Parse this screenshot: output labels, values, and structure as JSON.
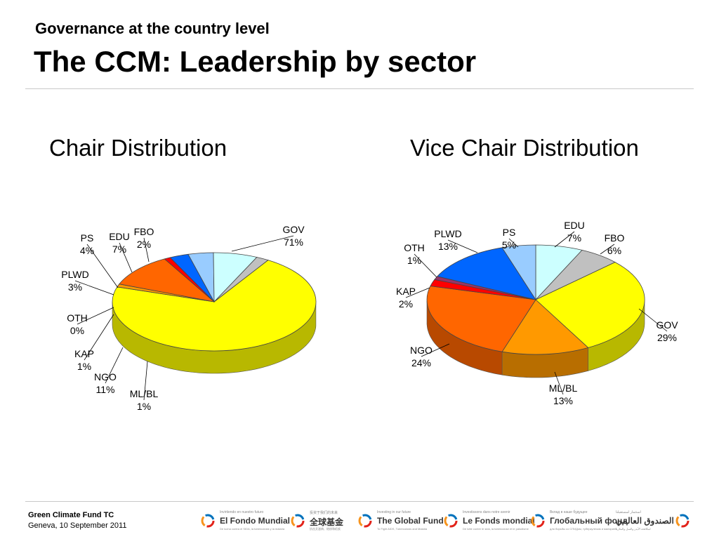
{
  "header": {
    "subtitle": "Governance at the country level",
    "title": "The CCM: Leadership by sector"
  },
  "chart_data": [
    {
      "type": "pie",
      "title": "Chair Distribution",
      "slices": [
        {
          "label": "GOV",
          "value": 71,
          "pct": "71%",
          "color": "#ffff00"
        },
        {
          "label": "ML/BL",
          "value": 1,
          "pct": "1%",
          "color": "#ff9900"
        },
        {
          "label": "NGO",
          "value": 11,
          "pct": "11%",
          "color": "#ff6600"
        },
        {
          "label": "KAP",
          "value": 1,
          "pct": "1%",
          "color": "#ff0000"
        },
        {
          "label": "OTH",
          "value": 0,
          "pct": "0%",
          "color": "#993366"
        },
        {
          "label": "PLWD",
          "value": 3,
          "pct": "3%",
          "color": "#0066ff"
        },
        {
          "label": "PS",
          "value": 4,
          "pct": "4%",
          "color": "#99ccff"
        },
        {
          "label": "EDU",
          "value": 7,
          "pct": "7%",
          "color": "#ccffff"
        },
        {
          "label": "FBO",
          "value": 2,
          "pct": "2%",
          "color": "#c0c0c0"
        }
      ]
    },
    {
      "type": "pie",
      "title": "Vice Chair Distribution",
      "slices": [
        {
          "label": "EDU",
          "value": 7,
          "pct": "7%",
          "color": "#ccffff"
        },
        {
          "label": "FBO",
          "value": 6,
          "pct": "6%",
          "color": "#c0c0c0"
        },
        {
          "label": "GOV",
          "value": 29,
          "pct": "29%",
          "color": "#ffff00"
        },
        {
          "label": "ML/BL",
          "value": 13,
          "pct": "13%",
          "color": "#ff9900"
        },
        {
          "label": "NGO",
          "value": 24,
          "pct": "24%",
          "color": "#ff6600"
        },
        {
          "label": "KAP",
          "value": 2,
          "pct": "2%",
          "color": "#ff0000"
        },
        {
          "label": "OTH",
          "value": 1,
          "pct": "1%",
          "color": "#993366"
        },
        {
          "label": "PLWD",
          "value": 13,
          "pct": "13%",
          "color": "#0066ff"
        },
        {
          "label": "PS",
          "value": 5,
          "pct": "5%",
          "color": "#99ccff"
        }
      ]
    }
  ],
  "footer": {
    "org": "Green Climate Fund TC",
    "date": "Geneva, 10 September 2011",
    "logos": [
      {
        "tag": "Invirtiendo en nuestro futuro",
        "name": "El Fondo Mundial",
        "sub": "De lucha contra el SIDA, la tuberculosis y la malaria"
      },
      {
        "tag": "投资于我们的未来",
        "name": "全球基金",
        "sub": "抗击艾滋病、结核和疟疾"
      },
      {
        "tag": "Investing in our future",
        "name": "The Global Fund",
        "sub": "To Fight AIDS, Tuberculosis and Malaria"
      },
      {
        "tag": "Investissons dans notre avenir",
        "name": "Le Fonds mondial",
        "sub": "De lutte contre le sida, la tuberculose et le paludisme"
      },
      {
        "tag": "Вклад в наше будущее",
        "name": "Глобальный фонд",
        "sub": "для борьбы со СПИДом, туберкулезом и малярией"
      },
      {
        "tag": "استثمار لمستقبلنا",
        "name": "الصندوق العالمي",
        "sub": "لمكافحة الأيدز والسل والملاريا"
      }
    ],
    "logo_colors": [
      "#e2231a",
      "#f7941d",
      "#0072bc"
    ]
  }
}
